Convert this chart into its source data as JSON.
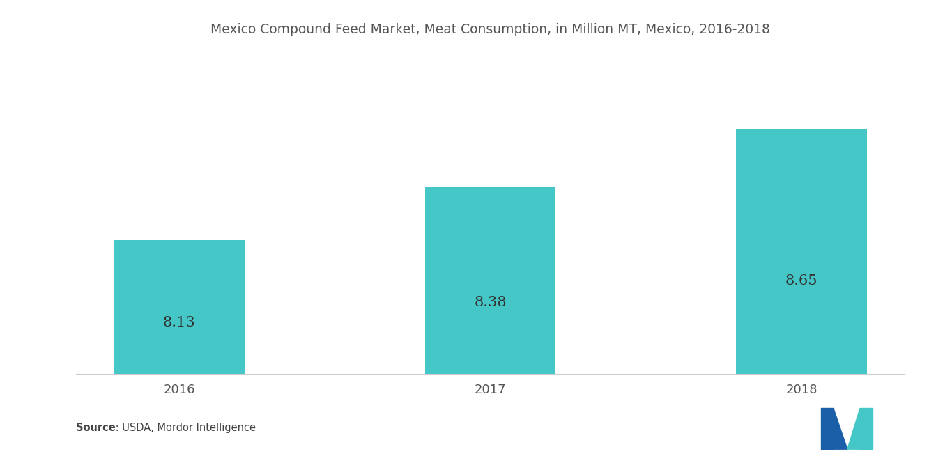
{
  "title": "Mexico Compound Feed Market, Meat Consumption, in Million MT, Mexico, 2016-2018",
  "categories": [
    "2016",
    "2017",
    "2018"
  ],
  "values": [
    8.13,
    8.38,
    8.65
  ],
  "bar_color": "#45C7C7",
  "bar_labels": [
    "8.13",
    "8.38",
    "8.65"
  ],
  "label_color": "#333333",
  "label_fontsize": 15,
  "title_fontsize": 13.5,
  "tick_fontsize": 13,
  "ylim_min": 7.5,
  "ylim_max": 9.0,
  "source_bold": "Source",
  "source_rest": " : USDA, Mordor Intelligence",
  "background_color": "#ffffff",
  "bar_width": 0.42,
  "blue_color": "#1B5FA8",
  "teal_color": "#45C7C7"
}
